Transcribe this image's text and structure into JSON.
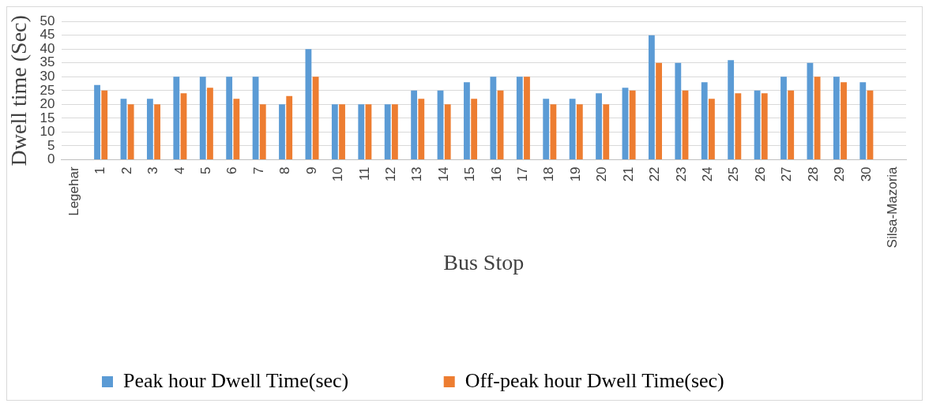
{
  "chart_data": {
    "type": "bar",
    "xlabel": "Bus Stop",
    "ylabel": "Dwell time (Sec)",
    "categories": [
      "Legehar",
      "1",
      "2",
      "3",
      "4",
      "5",
      "6",
      "7",
      "8",
      "9",
      "10",
      "11",
      "12",
      "13",
      "14",
      "15",
      "16",
      "17",
      "18",
      "19",
      "20",
      "21",
      "22",
      "23",
      "24",
      "25",
      "26",
      "27",
      "28",
      "29",
      "30",
      "Silsa-Mazoria"
    ],
    "series": [
      {
        "name": "Peak hour Dwell Time(sec)",
        "color": "#5b9bd5",
        "values": [
          null,
          27,
          22,
          22,
          30,
          30,
          30,
          30,
          20,
          40,
          20,
          20,
          20,
          25,
          25,
          28,
          30,
          30,
          22,
          22,
          24,
          26,
          45,
          35,
          28,
          36,
          25,
          30,
          35,
          30,
          28,
          null
        ]
      },
      {
        "name": "Off-peak hour Dwell Time(sec)",
        "color": "#ed7d31",
        "values": [
          null,
          25,
          20,
          20,
          24,
          26,
          22,
          20,
          23,
          30,
          20,
          20,
          20,
          22,
          20,
          22,
          25,
          30,
          20,
          20,
          20,
          25,
          35,
          25,
          22,
          24,
          24,
          25,
          30,
          28,
          25,
          null
        ]
      }
    ],
    "ylim": [
      0,
      50
    ],
    "yticks": [
      0,
      5,
      10,
      15,
      20,
      25,
      30,
      35,
      40,
      45,
      50
    ],
    "grid": "y",
    "legend": "bottom"
  }
}
